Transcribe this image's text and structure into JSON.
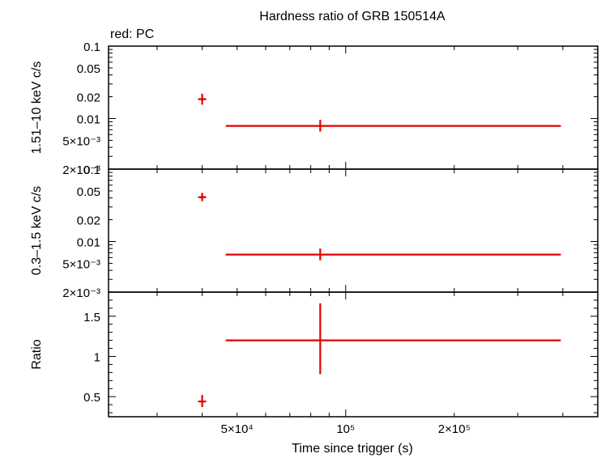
{
  "chart_data": [
    {
      "type": "scatter",
      "title": "Hardness ratio of GRB 150514A",
      "subtitle": "red: PC",
      "xlabel": "",
      "ylabel": "1.51–10 keV c/s",
      "xscale": "log",
      "yscale": "log",
      "xlim": [
        22000,
        500000
      ],
      "ylim": [
        0.002,
        0.1
      ],
      "yticks": [
        {
          "value": 0.1,
          "label": "0.1"
        },
        {
          "value": 0.05,
          "label": "0.05"
        },
        {
          "value": 0.02,
          "label": "0.02"
        },
        {
          "value": 0.01,
          "label": "0.01"
        },
        {
          "value": 0.005,
          "label": "5×10⁻³"
        },
        {
          "value": 0.002,
          "label": "2×10⁻³"
        }
      ],
      "series": [
        {
          "color": "#e00000",
          "points": [
            {
              "x": 40000,
              "xlo": 39300,
              "xhi": 40700,
              "y": 0.0185,
              "ylo": 0.0155,
              "yhi": 0.022
            },
            {
              "x": 85000,
              "xlo": 46500,
              "xhi": 395000,
              "y": 0.0079,
              "ylo": 0.0066,
              "yhi": 0.0096
            }
          ]
        }
      ]
    },
    {
      "type": "scatter",
      "xlabel": "",
      "ylabel": "0.3–1.5 keV c/s",
      "xscale": "log",
      "yscale": "log",
      "xlim": [
        22000,
        500000
      ],
      "ylim": [
        0.002,
        0.1
      ],
      "yticks": [
        {
          "value": 0.1,
          "label": "0.1"
        },
        {
          "value": 0.05,
          "label": "0.05"
        },
        {
          "value": 0.02,
          "label": "0.02"
        },
        {
          "value": 0.01,
          "label": "0.01"
        },
        {
          "value": 0.005,
          "label": "5×10⁻³"
        },
        {
          "value": 0.002,
          "label": "2×10⁻³"
        }
      ],
      "series": [
        {
          "color": "#e00000",
          "points": [
            {
              "x": 40000,
              "xlo": 39300,
              "xhi": 40700,
              "y": 0.041,
              "ylo": 0.036,
              "yhi": 0.047
            },
            {
              "x": 85000,
              "xlo": 46500,
              "xhi": 395000,
              "y": 0.0066,
              "ylo": 0.0055,
              "yhi": 0.008
            }
          ]
        }
      ]
    },
    {
      "type": "scatter",
      "xlabel": "Time since trigger (s)",
      "ylabel": "Ratio",
      "xscale": "log",
      "yscale": "linear",
      "xlim": [
        22000,
        500000
      ],
      "ylim": [
        0.25,
        1.8
      ],
      "yticks": [
        {
          "value": 0.5,
          "label": "0.5"
        },
        {
          "value": 1,
          "label": "1"
        },
        {
          "value": 1.5,
          "label": "1.5"
        }
      ],
      "xticks": [
        {
          "value": 50000,
          "label": "5×10⁴"
        },
        {
          "value": 100000,
          "label": "10⁵"
        },
        {
          "value": 200000,
          "label": "2×10⁵"
        }
      ],
      "series": [
        {
          "color": "#e00000",
          "points": [
            {
              "x": 40000,
              "xlo": 39300,
              "xhi": 40700,
              "y": 0.44,
              "ylo": 0.37,
              "yhi": 0.52
            },
            {
              "x": 85000,
              "xlo": 46500,
              "xhi": 395000,
              "y": 1.2,
              "ylo": 0.78,
              "yhi": 1.66
            }
          ]
        }
      ]
    }
  ]
}
